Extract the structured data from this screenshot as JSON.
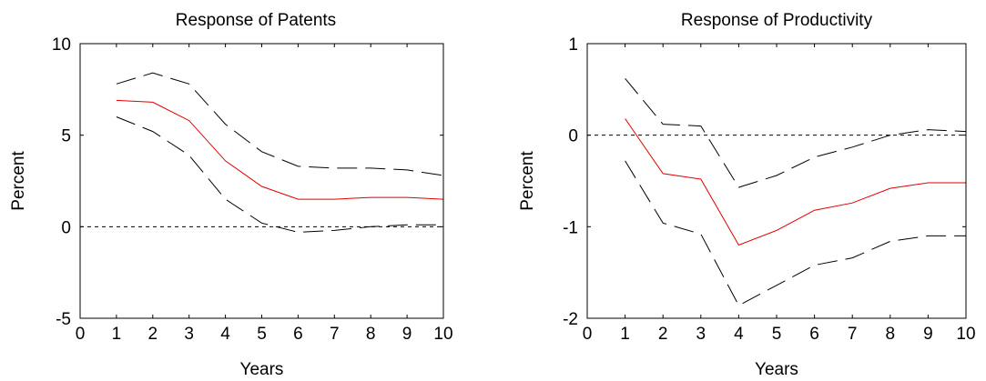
{
  "chart_data": [
    {
      "type": "line",
      "title": "Response of Patents",
      "xlabel": "Years",
      "ylabel": "Percent",
      "xlim": [
        0,
        10
      ],
      "ylim": [
        -5,
        10
      ],
      "xticks": [
        "0",
        "1",
        "2",
        "3",
        "4",
        "5",
        "6",
        "7",
        "8",
        "9",
        "10"
      ],
      "yticks": [
        "-5",
        "0",
        "5",
        "10"
      ],
      "x": [
        1,
        2,
        3,
        4,
        5,
        6,
        7,
        8,
        9,
        10
      ],
      "series": [
        {
          "role": "response",
          "color": "#e00000",
          "values": [
            6.9,
            6.8,
            5.8,
            3.6,
            2.2,
            1.5,
            1.5,
            1.6,
            1.6,
            1.5
          ]
        },
        {
          "role": "upper-band",
          "color": "#000000",
          "values": [
            7.8,
            8.4,
            7.8,
            5.6,
            4.1,
            3.3,
            3.2,
            3.2,
            3.1,
            2.8
          ]
        },
        {
          "role": "lower-band",
          "color": "#000000",
          "values": [
            6.0,
            5.2,
            3.9,
            1.5,
            0.2,
            -0.3,
            -0.2,
            0.0,
            0.1,
            0.1
          ]
        }
      ],
      "zero_line": 0
    },
    {
      "type": "line",
      "title": "Response of Productivity",
      "xlabel": "Years",
      "ylabel": "Percent",
      "xlim": [
        0,
        10
      ],
      "ylim": [
        -2,
        1
      ],
      "xticks": [
        "0",
        "1",
        "2",
        "3",
        "4",
        "5",
        "6",
        "7",
        "8",
        "9",
        "10"
      ],
      "yticks": [
        "-2",
        "-1",
        "0",
        "1"
      ],
      "x": [
        1,
        2,
        3,
        4,
        5,
        6,
        7,
        8,
        9,
        10
      ],
      "series": [
        {
          "role": "response",
          "color": "#e00000",
          "values": [
            0.18,
            -0.42,
            -0.48,
            -1.2,
            -1.04,
            -0.82,
            -0.74,
            -0.58,
            -0.52,
            -0.52
          ]
        },
        {
          "role": "upper-band",
          "color": "#000000",
          "values": [
            0.62,
            0.12,
            0.1,
            -0.57,
            -0.44,
            -0.24,
            -0.13,
            0.0,
            0.06,
            0.04
          ]
        },
        {
          "role": "lower-band",
          "color": "#000000",
          "values": [
            -0.28,
            -0.96,
            -1.08,
            -1.86,
            -1.64,
            -1.42,
            -1.34,
            -1.16,
            -1.1,
            -1.1
          ]
        }
      ],
      "zero_line": 0
    }
  ]
}
